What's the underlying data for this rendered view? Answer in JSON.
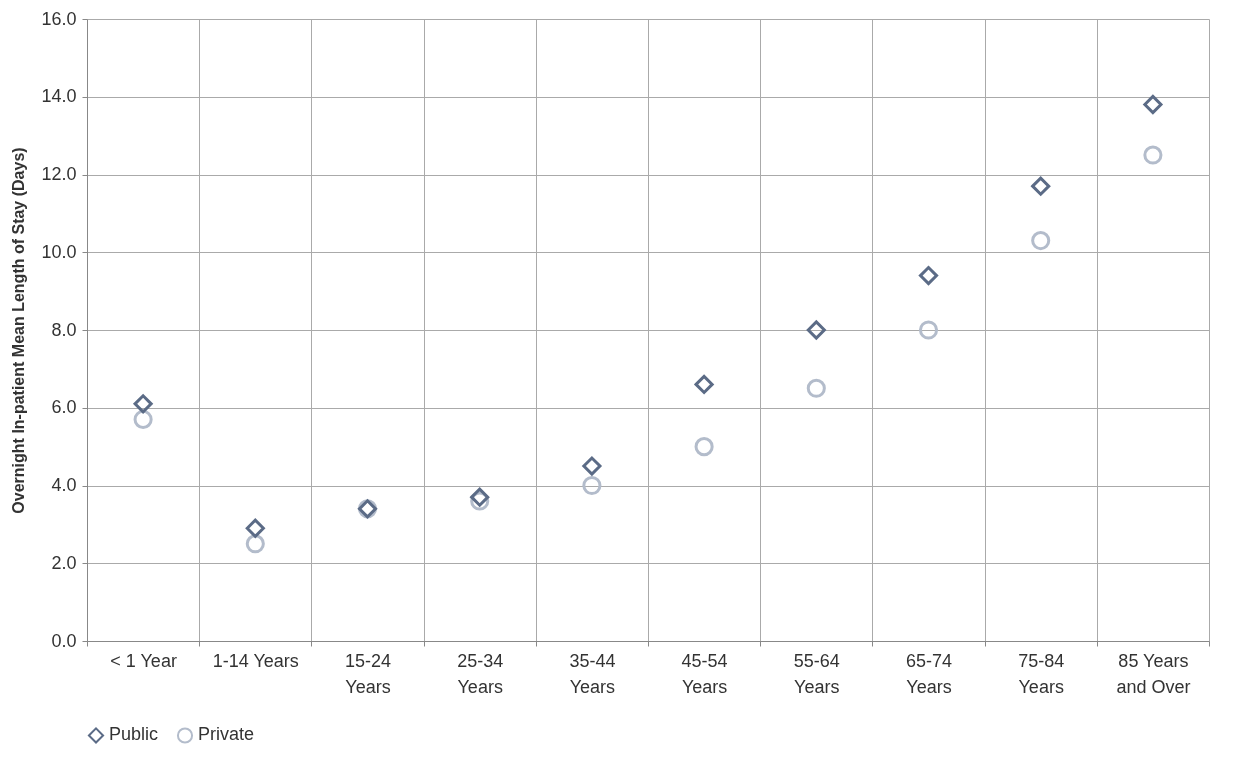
{
  "chart_data": {
    "type": "scatter",
    "ylabel": "Overnight In-patient Mean Length of Stay (Days)",
    "categories": [
      "< 1 Year",
      "1-14 Years",
      "15-24 Years",
      "25-34 Years",
      "35-44 Years",
      "45-54 Years",
      "55-64 Years",
      "65-74 Years",
      "75-84 Years",
      "85 Years and Over"
    ],
    "series": [
      {
        "name": "Public",
        "color": "#5b6b86",
        "marker": "diamond",
        "values": [
          6.1,
          2.9,
          3.4,
          3.7,
          4.5,
          6.6,
          8.0,
          9.4,
          11.7,
          13.8
        ]
      },
      {
        "name": "Private",
        "color": "#b3bccb",
        "marker": "circle",
        "values": [
          5.7,
          2.5,
          3.4,
          3.6,
          4.0,
          5.0,
          6.5,
          8.0,
          10.3,
          12.5
        ]
      }
    ],
    "ylim": [
      0,
      16
    ],
    "yticks": [
      {
        "value": 0,
        "label": "0.0"
      },
      {
        "value": 2,
        "label": "2.0"
      },
      {
        "value": 4,
        "label": "4.0"
      },
      {
        "value": 6,
        "label": "6.0"
      },
      {
        "value": 8,
        "label": "8.0"
      },
      {
        "value": 10,
        "label": "10.0"
      },
      {
        "value": 12,
        "label": "12.0"
      },
      {
        "value": 14,
        "label": "14.0"
      },
      {
        "value": 16,
        "label": "16.0"
      }
    ],
    "grid": true,
    "legend": "bottom left"
  }
}
